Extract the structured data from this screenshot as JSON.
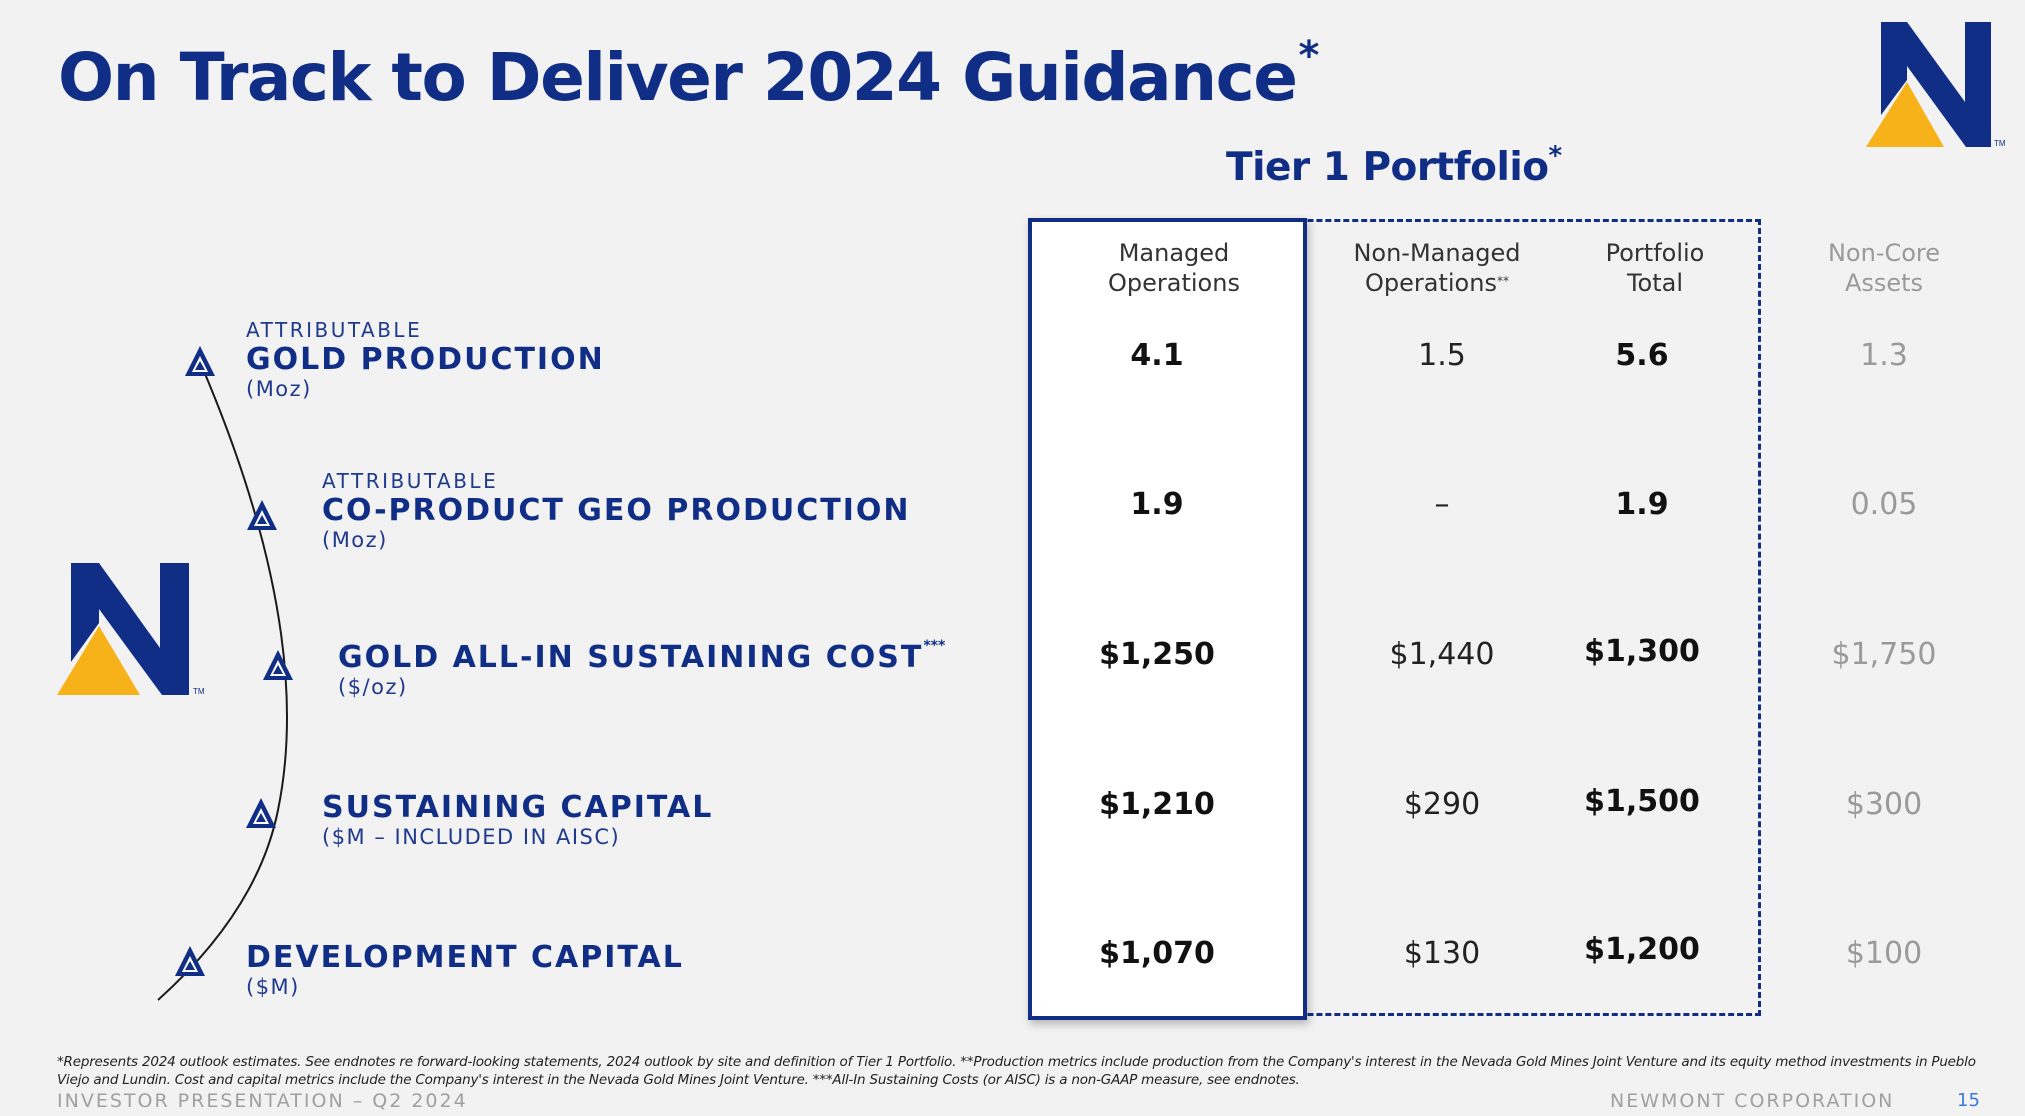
{
  "slide": {
    "title": "On Track to Deliver 2024 Guidance",
    "title_mark": "*",
    "tier_title": "Tier 1 Portfolio",
    "tier_mark": "*"
  },
  "brand": {
    "logo_name": "newmont-logo",
    "logo_tm": "TM",
    "primary_color": "#102e86",
    "accent_color": "#f7b21a"
  },
  "columns": [
    {
      "line1": "Managed",
      "line2": "Operations",
      "mark": ""
    },
    {
      "line1": "Non-Managed",
      "line2": "Operations",
      "mark": "**"
    },
    {
      "line1": "Portfolio",
      "line2": "Total",
      "mark": ""
    },
    {
      "line1": "Non-Core",
      "line2": "Assets",
      "mark": ""
    }
  ],
  "metrics": [
    {
      "prefix": "ATTRIBUTABLE",
      "name": "GOLD PRODUCTION",
      "mark": "",
      "unit": "(Moz)",
      "values": [
        "4.1",
        "1.5",
        "5.6",
        "1.3"
      ]
    },
    {
      "prefix": "ATTRIBUTABLE",
      "name": "CO-PRODUCT GEO PRODUCTION",
      "mark": "",
      "unit": "(Moz)",
      "values": [
        "1.9",
        "–",
        "1.9",
        "0.05"
      ]
    },
    {
      "prefix": "",
      "name": "GOLD ALL-IN SUSTAINING COST",
      "mark": "***",
      "unit": "($/oz)",
      "values": [
        "$1,250",
        "$1,440",
        "$1,300",
        "$1,750"
      ]
    },
    {
      "prefix": "",
      "name": "SUSTAINING CAPITAL",
      "mark": "",
      "unit": "($M – INCLUDED  IN AISC)",
      "values": [
        "$1,210",
        "$290",
        "$1,500",
        "$300"
      ]
    },
    {
      "prefix": "",
      "name": "DEVELOPMENT CAPITAL",
      "mark": "",
      "unit": "($M)",
      "values": [
        "$1,070",
        "$130",
        "$1,200",
        "$100"
      ]
    }
  ],
  "footnote": "*Represents 2024 outlook estimates. See endnotes re forward-looking statements, 2024 outlook by site and definition of Tier 1 Portfolio. **Production metrics include production from the Company's interest in the Nevada Gold Mines Joint Venture and its equity method investments in Pueblo Viejo and Lundin. Cost and capital metrics include the Company's interest in the Nevada Gold Mines Joint Venture. ***All-In Sustaining Costs (or AISC) is a non-GAAP measure, see endnotes.",
  "footer": {
    "left": "INVESTOR PRESENTATION – Q2 2024",
    "right": "NEWMONT CORPORATION",
    "page": "15"
  }
}
